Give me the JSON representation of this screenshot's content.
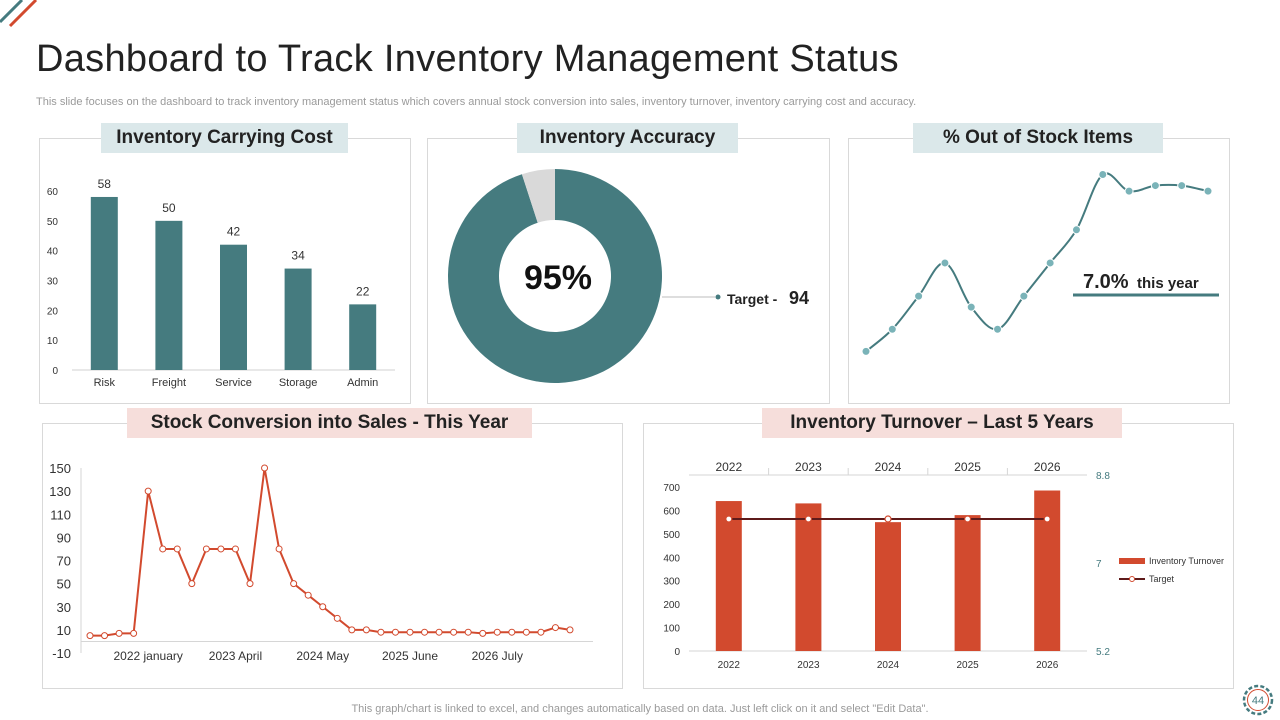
{
  "page": {
    "title": "Dashboard to Track Inventory Management Status",
    "subtitle": "This slide focuses on the dashboard to track inventory management status which covers annual stock conversion into sales, inventory turnover, inventory carrying cost and accuracy.",
    "footer_note": "This graph/chart is linked to excel, and changes automatically based on data. Just left click on it and select \"Edit Data\".",
    "page_number": "44"
  },
  "colors": {
    "teal": "#457b7f",
    "red": "#d24a2e",
    "dark_red": "#5e1a1a",
    "header_teal": "#dbe8ea",
    "header_pink": "#f6dedb",
    "dot": "#7ab3b8"
  },
  "chart_data": [
    {
      "id": "carrying-cost",
      "type": "bar",
      "title": "Inventory Carrying Cost",
      "categories": [
        "Risk",
        "Freight",
        "Service",
        "Storage",
        "Admin"
      ],
      "values": [
        58,
        50,
        42,
        34,
        22
      ],
      "ylim": [
        0,
        60
      ],
      "yticks": [
        0,
        10,
        20,
        30,
        40,
        50,
        60
      ]
    },
    {
      "id": "accuracy",
      "type": "pie",
      "title": "Inventory Accuracy",
      "value_label": "95%",
      "slices": [
        95,
        5
      ],
      "target_label": "Target - ",
      "target_value": "94"
    },
    {
      "id": "out-of-stock",
      "type": "line",
      "title": "% Out of Stock Items",
      "values": [
        5,
        9,
        15,
        21,
        13,
        9,
        15,
        21,
        27,
        37,
        34,
        35,
        35,
        34
      ],
      "ylim": [
        0,
        38
      ],
      "annotation_value": "7.0%",
      "annotation_text": " this year"
    },
    {
      "id": "stock-conversion",
      "type": "line",
      "title": "Stock Conversion into Sales -  This Year",
      "values": [
        5,
        5,
        7,
        7,
        130,
        80,
        80,
        50,
        80,
        80,
        80,
        50,
        150,
        80,
        50,
        40,
        30,
        20,
        10,
        10,
        8,
        8,
        8,
        8,
        8,
        8,
        8,
        7,
        8,
        8,
        8,
        8,
        12,
        10
      ],
      "ylim": [
        -10,
        150
      ],
      "yticks": [
        -10,
        10,
        30,
        50,
        70,
        90,
        110,
        130,
        150
      ],
      "x_labels": [
        {
          "label": "2022 january",
          "index": 4
        },
        {
          "label": "2023 April",
          "index": 10
        },
        {
          "label": "2024 May",
          "index": 16
        },
        {
          "label": "2025 June",
          "index": 22
        },
        {
          "label": "2026 July",
          "index": 28
        }
      ]
    },
    {
      "id": "turnover",
      "type": "bar",
      "title": "Inventory Turnover – Last 5 Years",
      "categories": [
        "2022",
        "2023",
        "2024",
        "2025",
        "2026"
      ],
      "series": [
        {
          "name": "Inventory Turnover",
          "values": [
            640,
            630,
            550,
            580,
            685
          ]
        },
        {
          "name": "Target",
          "values": [
            7.9,
            7.9,
            7.9,
            7.9,
            7.9
          ]
        }
      ],
      "ylim": [
        0,
        700
      ],
      "yticks": [
        0,
        100,
        200,
        300,
        400,
        500,
        600,
        700
      ],
      "y2_ticks": [
        "5.2",
        "7",
        "8.8"
      ],
      "y2lim": [
        5.2,
        8.8
      ]
    }
  ]
}
